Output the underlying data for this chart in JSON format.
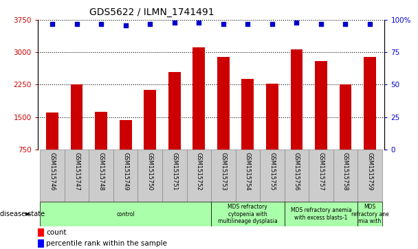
{
  "title": "GDS5622 / ILMN_1741491",
  "samples": [
    "GSM1515746",
    "GSM1515747",
    "GSM1515748",
    "GSM1515749",
    "GSM1515750",
    "GSM1515751",
    "GSM1515752",
    "GSM1515753",
    "GSM1515754",
    "GSM1515755",
    "GSM1515756",
    "GSM1515757",
    "GSM1515758",
    "GSM1515759"
  ],
  "counts": [
    1600,
    2250,
    1620,
    1430,
    2130,
    2550,
    3120,
    2900,
    2380,
    2270,
    3070,
    2800,
    2250,
    2900
  ],
  "percentiles": [
    97,
    97,
    97,
    96,
    97,
    98,
    98,
    97,
    97,
    97,
    98,
    97,
    97,
    97
  ],
  "bar_color": "#cc0000",
  "dot_color": "#0000cc",
  "ylim_left": [
    750,
    3750
  ],
  "ylim_right": [
    0,
    100
  ],
  "yticks_left": [
    750,
    1500,
    2250,
    3000,
    3750
  ],
  "yticks_right": [
    0,
    25,
    50,
    75,
    100
  ],
  "disease_groups": [
    {
      "label": "control",
      "start": 0,
      "end": 7,
      "color": "#aaffaa"
    },
    {
      "label": "MDS refractory\ncytopenia with\nmultilineage dysplasia",
      "start": 7,
      "end": 10,
      "color": "#aaffaa"
    },
    {
      "label": "MDS refractory anemia\nwith excess blasts-1",
      "start": 10,
      "end": 13,
      "color": "#aaffaa"
    },
    {
      "label": "MDS\nrefractory ane\nmia with",
      "start": 13,
      "end": 14,
      "color": "#aaffaa"
    }
  ],
  "tick_color_left": "#cc0000",
  "tick_color_right": "#0000cc",
  "bar_width": 0.5,
  "xlim": [
    -0.6,
    13.6
  ]
}
